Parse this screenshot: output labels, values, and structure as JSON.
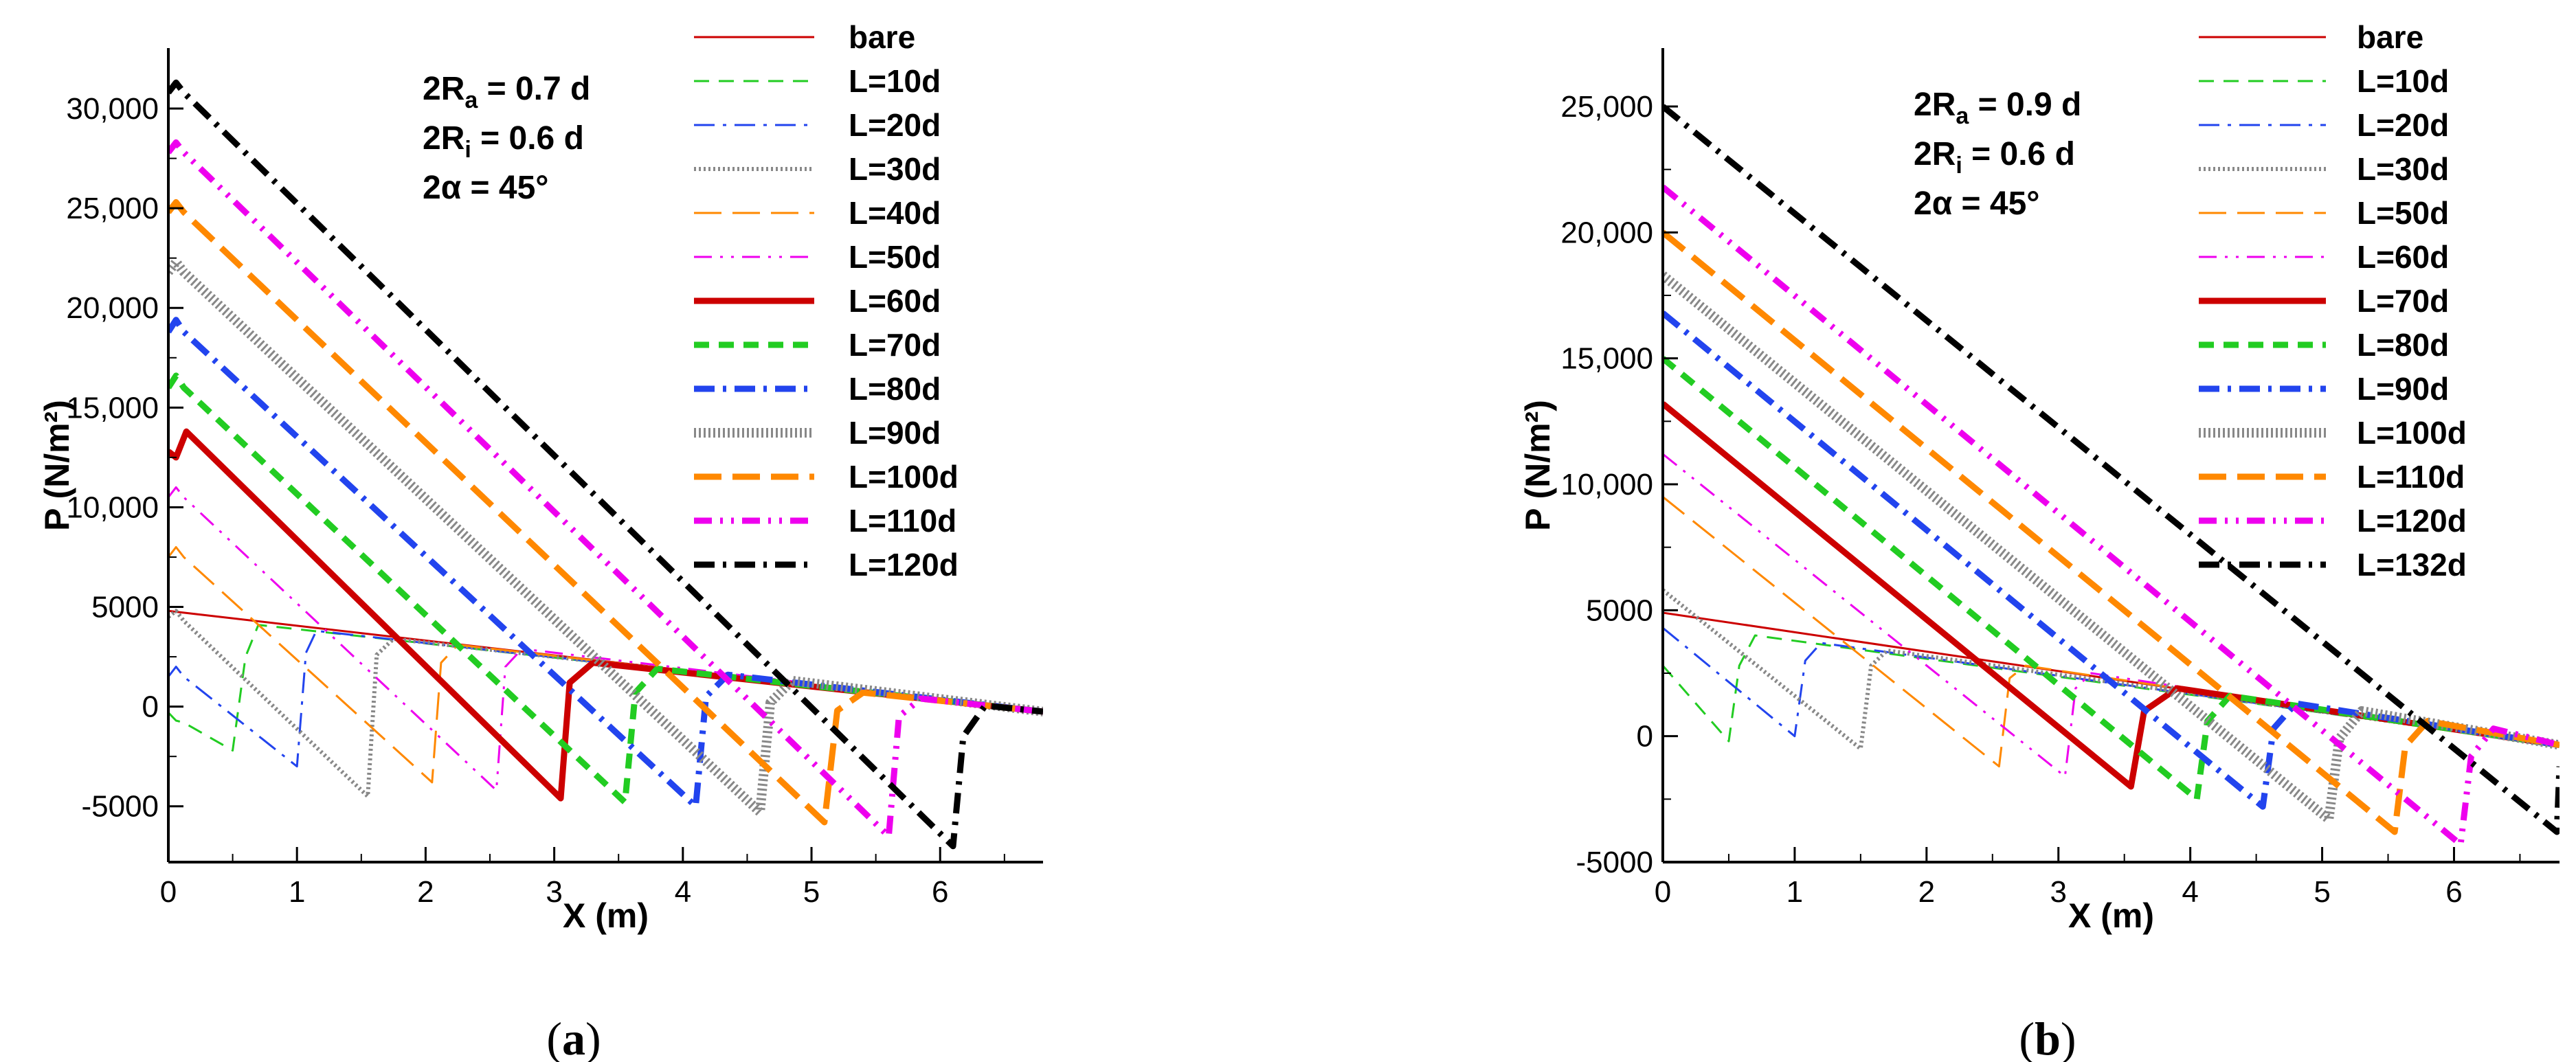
{
  "chart_data": [
    {
      "type": "line",
      "panel_label": "(a)",
      "panel_letter": "a",
      "xlabel": "X (m)",
      "ylabel": "P (N/m²)",
      "xlim": [
        0,
        6.8
      ],
      "ylim": [
        -7800,
        32000
      ],
      "xticks": [
        0,
        1,
        2,
        3,
        4,
        5,
        6
      ],
      "xtick_labels": [
        "0",
        "1",
        "2",
        "3",
        "4",
        "5",
        "6"
      ],
      "yticks": [
        -5000,
        0,
        5000,
        10000,
        15000,
        20000,
        25000,
        30000
      ],
      "ytick_labels": [
        "-5000",
        "0",
        "5000",
        "10,000",
        "15,000",
        "20,000",
        "25,000",
        "30,000"
      ],
      "annotations": [
        "2R_a = 0.7 d",
        "2R_i = 0.6 d",
        "2α = 45°"
      ],
      "annotation_lines": [
        {
          "main": "2R",
          "sub": "a",
          "rest": " = 0.7 d"
        },
        {
          "main": "2R",
          "sub": "i",
          "rest": " = 0.6 d"
        },
        {
          "main": "2α",
          "sub": "",
          "rest": "   = 45°"
        }
      ],
      "bare": {
        "x": [
          0,
          6.8
        ],
        "y": [
          4800,
          -250
        ]
      },
      "series": [
        {
          "name": "bare",
          "color": "#cc0000",
          "style": "thin-solid",
          "x": [
            0,
            6.8
          ],
          "y": [
            4800,
            -250
          ]
        },
        {
          "name": "L=10d",
          "color": "#22cc22",
          "style": "thin-dash",
          "x": [
            0,
            0.06,
            0.12,
            0.5,
            0.6,
            0.7
          ],
          "y": [
            -300,
            -700,
            -800,
            -2200,
            2500,
            4100
          ]
        },
        {
          "name": "L=20d",
          "color": "#2244ee",
          "style": "thin-dashdot",
          "x": [
            0,
            0.06,
            0.12,
            1.0,
            1.07,
            1.15
          ],
          "y": [
            1500,
            2000,
            1500,
            -3000,
            2700,
            3800
          ]
        },
        {
          "name": "L=30d",
          "color": "#888888",
          "style": "thin-dot",
          "x": [
            0,
            0.06,
            0.12,
            1.55,
            1.62,
            1.75
          ],
          "y": [
            4500,
            4800,
            4300,
            -4500,
            2600,
            3400
          ]
        },
        {
          "name": "L=40d",
          "color": "#ff8800",
          "style": "thin-longdash",
          "x": [
            0,
            0.06,
            0.12,
            2.05,
            2.12,
            2.25
          ],
          "y": [
            7500,
            8000,
            7500,
            -3800,
            2200,
            3100
          ]
        },
        {
          "name": "L=50d",
          "color": "#ee00ee",
          "style": "thin-dashdotdot",
          "x": [
            0,
            0.06,
            0.12,
            2.55,
            2.62,
            2.75
          ],
          "y": [
            10500,
            11000,
            10500,
            -4200,
            2000,
            2900
          ]
        },
        {
          "name": "L=60d",
          "color": "#cc0000",
          "style": "thick-solid",
          "x": [
            0,
            0.06,
            0.14,
            3.05,
            3.12,
            3.3
          ],
          "y": [
            12800,
            12500,
            13800,
            -4600,
            1200,
            2200
          ]
        },
        {
          "name": "L=70d",
          "color": "#22cc22",
          "style": "thick-dash",
          "x": [
            0,
            0.06,
            0.12,
            3.55,
            3.63,
            3.8
          ],
          "y": [
            16000,
            16600,
            16000,
            -4800,
            700,
            1900
          ]
        },
        {
          "name": "L=80d",
          "color": "#2244ee",
          "style": "thick-dashdot",
          "x": [
            0,
            0.06,
            0.12,
            4.1,
            4.18,
            4.35
          ],
          "y": [
            18800,
            19400,
            18800,
            -5000,
            500,
            1600
          ]
        },
        {
          "name": "L=90d",
          "color": "#888888",
          "style": "thick-dot",
          "x": [
            0,
            0.06,
            0.12,
            4.6,
            4.68,
            4.85
          ],
          "y": [
            21800,
            22300,
            21800,
            -5300,
            200,
            1300
          ]
        },
        {
          "name": "L=100d",
          "color": "#ff8800",
          "style": "thick-longdash",
          "x": [
            0,
            0.06,
            0.12,
            5.1,
            5.2,
            5.4
          ],
          "y": [
            24800,
            25300,
            24800,
            -5800,
            -200,
            700
          ]
        },
        {
          "name": "L=110d",
          "color": "#ee00ee",
          "style": "thick-dashdotdot",
          "x": [
            0,
            0.06,
            0.12,
            5.6,
            5.68,
            5.85
          ],
          "y": [
            27800,
            28300,
            27800,
            -6500,
            -500,
            400
          ]
        },
        {
          "name": "L=120d",
          "color": "#000000",
          "style": "thick-dashdot",
          "x": [
            0,
            0.06,
            0.12,
            6.1,
            6.18,
            6.35
          ],
          "y": [
            30800,
            31300,
            30800,
            -7000,
            -1500,
            50
          ]
        }
      ]
    },
    {
      "type": "line",
      "panel_label": "(b)",
      "panel_letter": "b",
      "xlabel": "X (m)",
      "ylabel": "P (N/m²)",
      "xlim": [
        0,
        6.8
      ],
      "ylim": [
        -5000,
        26500
      ],
      "xticks": [
        0,
        1,
        2,
        3,
        4,
        5,
        6
      ],
      "xtick_labels": [
        "0",
        "1",
        "2",
        "3",
        "4",
        "5",
        "6"
      ],
      "yticks": [
        -5000,
        0,
        5000,
        10000,
        15000,
        20000,
        25000
      ],
      "ytick_labels": [
        "-5000",
        "0",
        "5000",
        "10,000",
        "15,000",
        "20,000",
        "25,000"
      ],
      "annotations": [
        "2R_a = 0.9 d",
        "2R_i = 0.6 d",
        "2α = 45°"
      ],
      "annotation_lines": [
        {
          "main": "2R",
          "sub": "a",
          "rest": " = 0.9 d"
        },
        {
          "main": "2R",
          "sub": "i",
          "rest": " = 0.6 d"
        },
        {
          "main": "2α",
          "sub": "",
          "rest": "   = 45°"
        }
      ],
      "bare": {
        "x": [
          0,
          6.8
        ],
        "y": [
          4900,
          -350
        ]
      },
      "series": [
        {
          "name": "bare",
          "color": "#cc0000",
          "style": "thin-solid",
          "x": [
            0,
            6.8
          ],
          "y": [
            4900,
            -350
          ]
        },
        {
          "name": "L=10d",
          "color": "#22cc22",
          "style": "thin-dash",
          "x": [
            0,
            0.5,
            0.58,
            0.7
          ],
          "y": [
            2800,
            -200,
            2800,
            4000
          ]
        },
        {
          "name": "L=20d",
          "color": "#2244ee",
          "style": "thin-dashdot",
          "x": [
            0,
            1.0,
            1.08,
            1.2
          ],
          "y": [
            4300,
            0,
            3000,
            3700
          ]
        },
        {
          "name": "L=30d",
          "color": "#888888",
          "style": "thin-dot",
          "x": [
            0,
            1.5,
            1.58,
            1.7
          ],
          "y": [
            5800,
            -500,
            2800,
            3400
          ]
        },
        {
          "name": "L=50d",
          "color": "#ff8800",
          "style": "thin-longdash",
          "x": [
            0,
            2.55,
            2.63,
            2.75
          ],
          "y": [
            9500,
            -1200,
            2300,
            2800
          ]
        },
        {
          "name": "L=60d",
          "color": "#ee00ee",
          "style": "thin-dashdotdot",
          "x": [
            0,
            3.05,
            3.13,
            3.25
          ],
          "y": [
            11200,
            -1600,
            1900,
            2500
          ]
        },
        {
          "name": "L=70d",
          "color": "#cc0000",
          "style": "thick-solid",
          "x": [
            0,
            3.55,
            3.65,
            3.9
          ],
          "y": [
            13200,
            -2000,
            1000,
            1900
          ]
        },
        {
          "name": "L=80d",
          "color": "#22cc22",
          "style": "thick-dash",
          "x": [
            0,
            4.05,
            4.13,
            4.3
          ],
          "y": [
            15000,
            -2500,
            600,
            1600
          ]
        },
        {
          "name": "L=90d",
          "color": "#2244ee",
          "style": "thick-dashdot",
          "x": [
            0,
            4.55,
            4.63,
            4.8
          ],
          "y": [
            16800,
            -2800,
            300,
            1300
          ]
        },
        {
          "name": "L=100d",
          "color": "#888888",
          "style": "thick-dot",
          "x": [
            0,
            5.05,
            5.13,
            5.3
          ],
          "y": [
            18300,
            -3300,
            -100,
            1000
          ]
        },
        {
          "name": "L=110d",
          "color": "#ff8800",
          "style": "thick-longdash",
          "x": [
            0,
            5.55,
            5.63,
            5.8
          ],
          "y": [
            20000,
            -3800,
            -400,
            600
          ]
        },
        {
          "name": "L=120d",
          "color": "#ee00ee",
          "style": "thick-dashdotdot",
          "x": [
            0,
            6.05,
            6.13,
            6.3
          ],
          "y": [
            21800,
            -4300,
            -800,
            300
          ]
        },
        {
          "name": "L=132d",
          "color": "#000000",
          "style": "thick-dashdot",
          "x": [
            0,
            6.78,
            6.8
          ],
          "y": [
            25000,
            -3800,
            -1200
          ]
        }
      ]
    }
  ]
}
